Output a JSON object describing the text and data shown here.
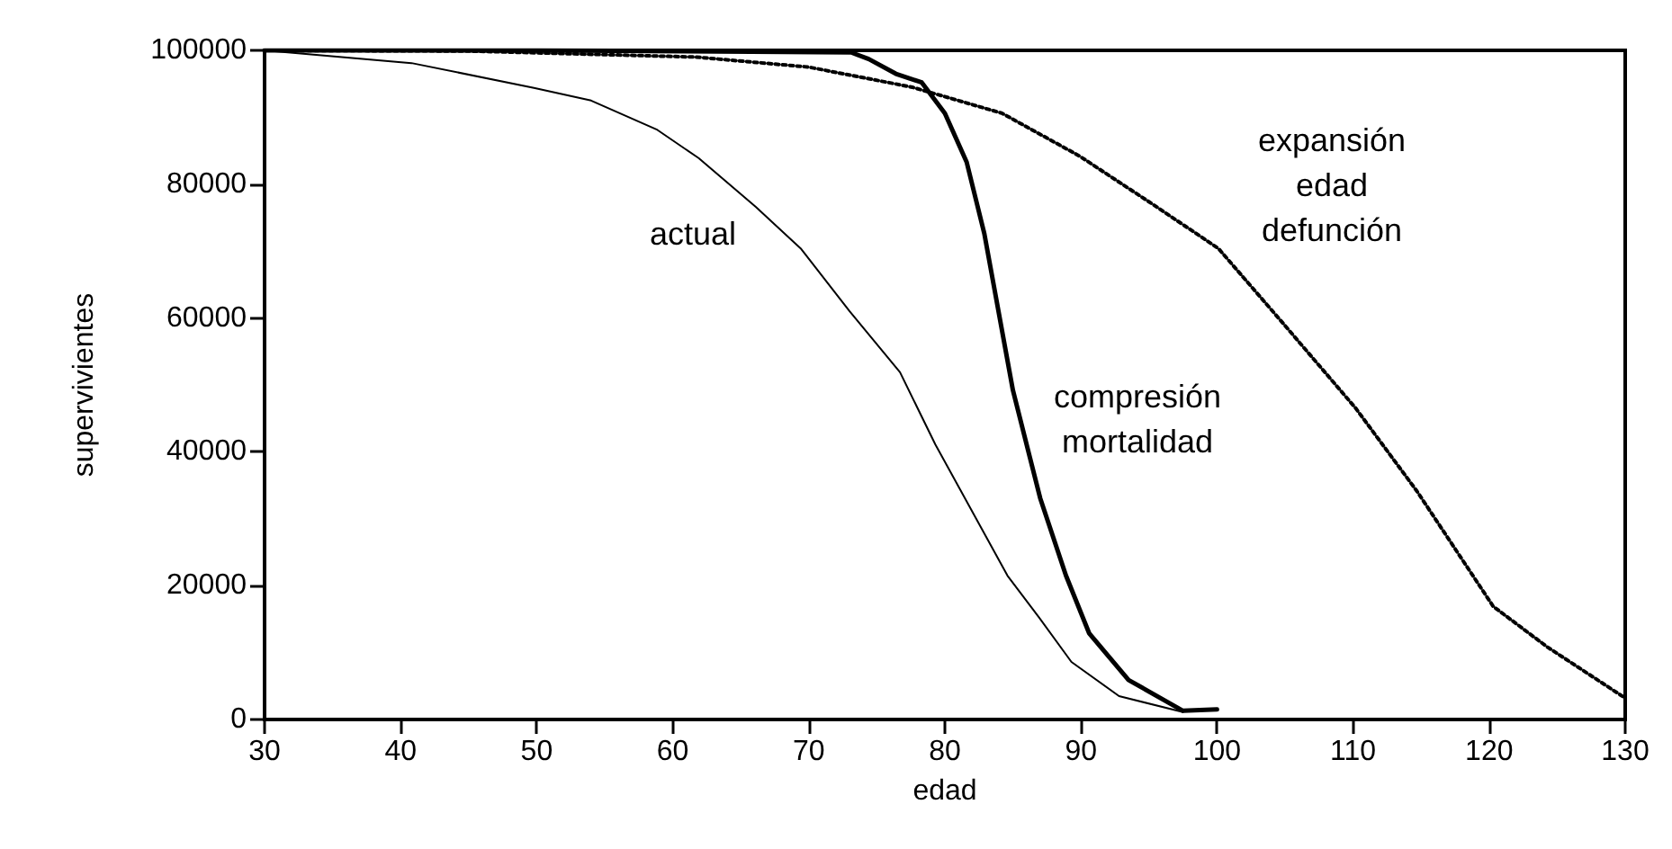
{
  "chart_data": {
    "type": "line",
    "xlabel": "edad",
    "ylabel": "supervivientes",
    "xlim": [
      30,
      130
    ],
    "xticks": [
      30,
      40,
      50,
      60,
      70,
      80,
      90,
      100,
      110,
      120,
      130
    ],
    "ylim": [
      0,
      100000
    ],
    "yticks": [
      0,
      20000,
      40000,
      60000,
      80000,
      100000
    ],
    "grid": false,
    "legend": false,
    "marker": "none",
    "series": [
      {
        "name": "actual",
        "color": "#000000",
        "line_style": "solid",
        "x": [
          30,
          40.8,
          49.8,
          54,
          58.8,
          61.9,
          66.1,
          69.4,
          73,
          76.7,
          79.3,
          84.6,
          86.9,
          89.3,
          92.8,
          97.5
        ],
        "values": [
          100000,
          98100,
          94400,
          92500,
          88200,
          83900,
          76600,
          70400,
          61000,
          51900,
          41100,
          21500,
          15300,
          8600,
          3500,
          1100
        ]
      },
      {
        "name": "compresión\nmortalidad",
        "color": "#000000",
        "line_style": "solid",
        "x": [
          30,
          50,
          73.1,
          74.4,
          76.4,
          78.3,
          80,
          81.6,
          82.9,
          85,
          87,
          88.9,
          90.6,
          93.5,
          97.5,
          100
        ],
        "values": [
          100000,
          100000,
          99700,
          98700,
          96500,
          95200,
          90600,
          83300,
          72600,
          49200,
          33100,
          21500,
          12900,
          5900,
          1300,
          1500
        ]
      },
      {
        "name": "expansión\nedad\ndefunción",
        "color": "#000000",
        "line_style": "dotted",
        "x": [
          30,
          45,
          61.7,
          70,
          77.6,
          84.2,
          89.9,
          95.2,
          100.1,
          104.9,
          110.2,
          114.7,
          120.3,
          124.3,
          130
        ],
        "values": [
          100000,
          99900,
          99000,
          97500,
          94500,
          90600,
          84200,
          77100,
          70400,
          59100,
          46500,
          34100,
          16900,
          10800,
          3200
        ]
      }
    ]
  }
}
